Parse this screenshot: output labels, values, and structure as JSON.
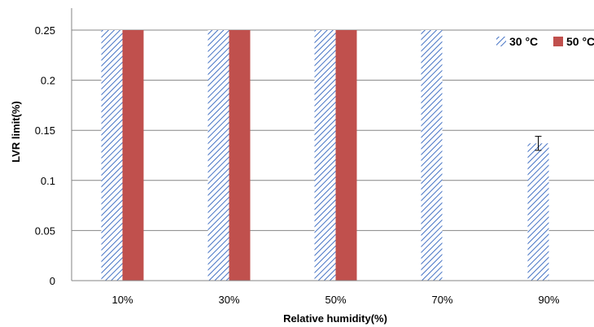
{
  "chart_data": {
    "type": "bar",
    "title": "",
    "xlabel": "Relative humidity(%)",
    "ylabel": "LVR limit(%)",
    "categories": [
      "10%",
      "30%",
      "50%",
      "70%",
      "90%"
    ],
    "ylim": [
      0,
      0.25
    ],
    "yticks": [
      "0",
      "0.05",
      "0.1",
      "0.15",
      "0.2",
      "0.25"
    ],
    "grid": true,
    "legend_position": "top-right",
    "series": [
      {
        "name": "30 °C",
        "pattern": "diagonal-hatch",
        "color": "#4472C4",
        "values": [
          0.25,
          0.25,
          0.25,
          0.25,
          0.137
        ],
        "error": [
          null,
          null,
          null,
          null,
          0.007
        ]
      },
      {
        "name": "50 °C",
        "pattern": "solid",
        "color": "#C0504D",
        "values": [
          0.25,
          0.25,
          0.25,
          null,
          null
        ],
        "error": [
          null,
          null,
          null,
          null,
          null
        ]
      }
    ]
  }
}
